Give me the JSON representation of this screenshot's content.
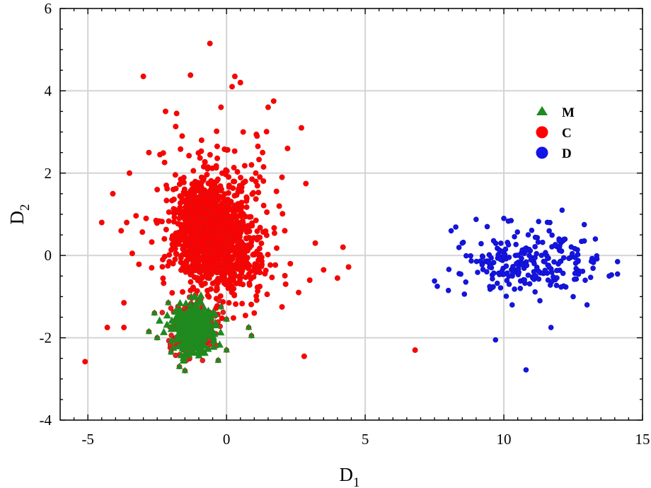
{
  "chart_data": {
    "type": "scatter",
    "title": "",
    "xlabel": "D",
    "xlabel_sub": "1",
    "ylabel": "D",
    "ylabel_sub": "2",
    "xlim": [
      -6,
      15
    ],
    "ylim": [
      -4,
      6
    ],
    "xticks": [
      -5,
      0,
      5,
      10,
      15
    ],
    "xtick_labels": [
      "-5",
      "0",
      "5",
      "10",
      "15"
    ],
    "yticks": [
      -4,
      -2,
      0,
      2,
      4,
      6
    ],
    "ytick_labels": [
      "-4",
      "-2",
      "0",
      "2",
      "4",
      "6"
    ],
    "grid": true,
    "legend_position": "top-right",
    "series": [
      {
        "name": "C",
        "marker": "circle",
        "color": "#ff0000",
        "edge_color": "#e01010",
        "center": [
          -0.7,
          0.5
        ],
        "spread": [
          1.0,
          0.9
        ],
        "points": [
          [
            -0.6,
            5.15
          ],
          [
            -3.0,
            4.35
          ],
          [
            -1.3,
            4.38
          ],
          [
            0.3,
            4.35
          ],
          [
            0.2,
            4.1
          ],
          [
            0.5,
            4.2
          ],
          [
            -2.2,
            3.5
          ],
          [
            -1.8,
            3.45
          ],
          [
            -0.2,
            3.6
          ],
          [
            1.7,
            3.75
          ],
          [
            1.5,
            3.6
          ],
          [
            2.7,
            3.1
          ],
          [
            -2.8,
            2.5
          ],
          [
            -2.4,
            2.45
          ],
          [
            2.2,
            2.6
          ],
          [
            1.3,
            2.5
          ],
          [
            -3.5,
            2.0
          ],
          [
            2.0,
            1.9
          ],
          [
            -4.5,
            0.8
          ],
          [
            -4.1,
            1.5
          ],
          [
            -3.6,
            0.8
          ],
          [
            -3.4,
            0.05
          ],
          [
            -3.8,
            0.6
          ],
          [
            3.2,
            0.3
          ],
          [
            4.2,
            0.2
          ],
          [
            4.4,
            -0.28
          ],
          [
            4.0,
            -0.55
          ],
          [
            3.5,
            -0.35
          ],
          [
            3.0,
            -0.6
          ],
          [
            2.6,
            -0.9
          ],
          [
            2.0,
            -1.25
          ],
          [
            1.0,
            -1.4
          ],
          [
            -1.3,
            -0.85
          ],
          [
            -1.2,
            -1.3
          ],
          [
            -3.7,
            -1.15
          ],
          [
            -3.7,
            -1.75
          ],
          [
            -4.3,
            -1.75
          ],
          [
            -5.1,
            -2.58
          ],
          [
            2.8,
            -2.45
          ],
          [
            6.8,
            -2.3
          ],
          [
            -2.7,
            -0.3
          ],
          [
            -2.3,
            -0.1
          ],
          [
            2.1,
            0.6
          ],
          [
            2.3,
            -0.2
          ],
          [
            1.9,
            1.2
          ],
          [
            0.9,
            2.2
          ],
          [
            -0.9,
            2.8
          ],
          [
            0.6,
            3.0
          ],
          [
            -1.6,
            2.9
          ],
          [
            1.1,
            2.9
          ],
          [
            -2.5,
            1.6
          ],
          [
            -2.9,
            0.9
          ]
        ]
      },
      {
        "name": "M",
        "marker": "triangle",
        "color": "#1f8a1f",
        "edge_color": "#e03020",
        "center": [
          -1.2,
          -1.8
        ],
        "spread": [
          0.4,
          0.32
        ],
        "points": [
          [
            -1.5,
            -2.8
          ],
          [
            -1.7,
            -2.7
          ],
          [
            -0.3,
            -2.55
          ],
          [
            0.0,
            -1.55
          ],
          [
            0.8,
            -1.75
          ],
          [
            0.9,
            -1.95
          ],
          [
            -2.8,
            -1.85
          ],
          [
            -2.5,
            -2.0
          ],
          [
            -2.6,
            -1.4
          ],
          [
            -0.2,
            -1.25
          ],
          [
            -2.1,
            -1.15
          ],
          [
            -1.3,
            -1.2
          ],
          [
            -2.0,
            -2.35
          ],
          [
            0.0,
            -2.3
          ]
        ]
      },
      {
        "name": "D",
        "marker": "circle",
        "color": "#1414e6",
        "edge_color": "#1010c0",
        "center": [
          10.9,
          -0.15
        ],
        "spread": [
          1.35,
          0.42
        ],
        "points": [
          [
            9.7,
            -2.05
          ],
          [
            10.8,
            -2.78
          ],
          [
            11.7,
            -1.75
          ],
          [
            12.1,
            1.1
          ],
          [
            8.1,
            0.6
          ],
          [
            7.5,
            -0.62
          ],
          [
            7.6,
            -0.75
          ],
          [
            10.0,
            0.9
          ],
          [
            14.1,
            -0.15
          ],
          [
            14.1,
            -0.45
          ],
          [
            13.8,
            -0.5
          ],
          [
            12.9,
            0.75
          ],
          [
            13.0,
            -1.2
          ],
          [
            10.3,
            -1.2
          ],
          [
            8.5,
            0.3
          ],
          [
            9.4,
            0.7
          ],
          [
            13.3,
            0.4
          ],
          [
            12.5,
            -1.0
          ],
          [
            8.0,
            -0.85
          ],
          [
            11.3,
            -1.1
          ]
        ]
      }
    ]
  }
}
